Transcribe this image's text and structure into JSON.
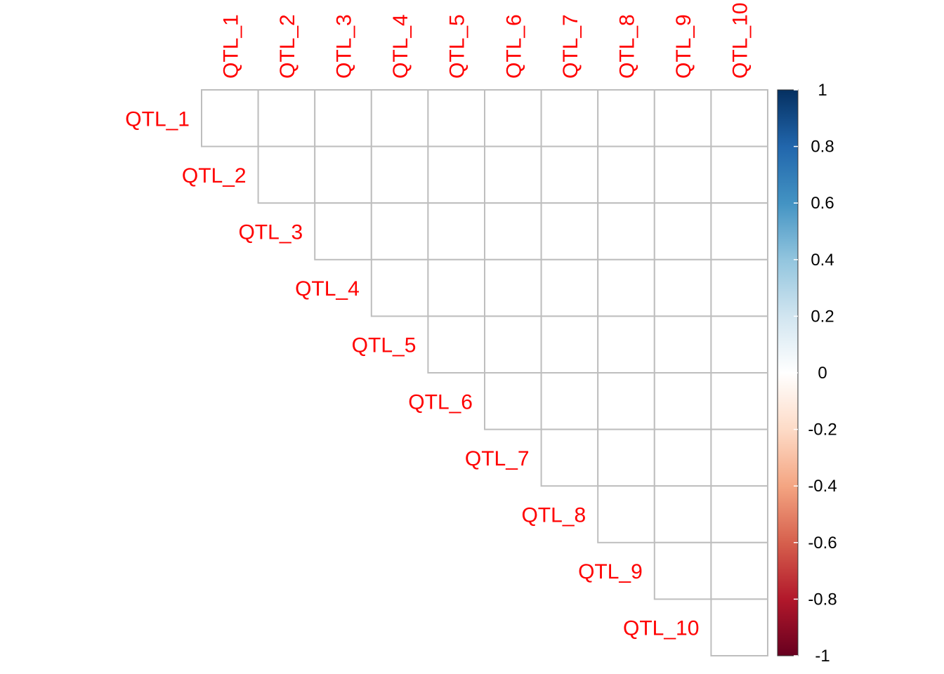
{
  "chart_data": {
    "type": "heatmap",
    "variant": "upper-triangle correlation matrix",
    "title": "",
    "labels": [
      "QTL_1",
      "QTL_2",
      "QTL_3",
      "QTL_4",
      "QTL_5",
      "QTL_6",
      "QTL_7",
      "QTL_8",
      "QTL_9",
      "QTL_10"
    ],
    "matrix": [
      [
        null,
        null,
        null,
        null,
        null,
        null,
        null,
        null,
        null,
        null
      ],
      [
        null,
        null,
        null,
        null,
        null,
        null,
        null,
        null,
        null,
        null
      ],
      [
        null,
        null,
        null,
        null,
        null,
        null,
        null,
        null,
        null,
        null
      ],
      [
        null,
        null,
        null,
        null,
        null,
        null,
        null,
        null,
        null,
        null
      ],
      [
        null,
        null,
        null,
        null,
        null,
        null,
        null,
        null,
        null,
        null
      ],
      [
        null,
        null,
        null,
        null,
        null,
        null,
        null,
        null,
        null,
        null
      ],
      [
        null,
        null,
        null,
        null,
        null,
        null,
        null,
        null,
        null,
        null
      ],
      [
        null,
        null,
        null,
        null,
        null,
        null,
        null,
        null,
        null,
        null
      ],
      [
        null,
        null,
        null,
        null,
        null,
        null,
        null,
        null,
        null,
        null
      ],
      [
        null,
        null,
        null,
        null,
        null,
        null,
        null,
        null,
        null,
        null
      ]
    ],
    "colorbar": {
      "range": [
        -1,
        1
      ],
      "ticks": [
        "1",
        "0.8",
        "0.6",
        "0.4",
        "0.2",
        "0",
        "-0.2",
        "-0.4",
        "-0.6",
        "-0.8",
        "-1"
      ],
      "stops": [
        "#053061",
        "#2166ac",
        "#4393c3",
        "#92c5de",
        "#d1e5f0",
        "#ffffff",
        "#fddbc7",
        "#f4a582",
        "#d6604d",
        "#b2182b",
        "#67001f"
      ]
    },
    "label_color": "#ff0000",
    "grid_color": "#bebebe",
    "grid": true,
    "legend_position": "right"
  }
}
